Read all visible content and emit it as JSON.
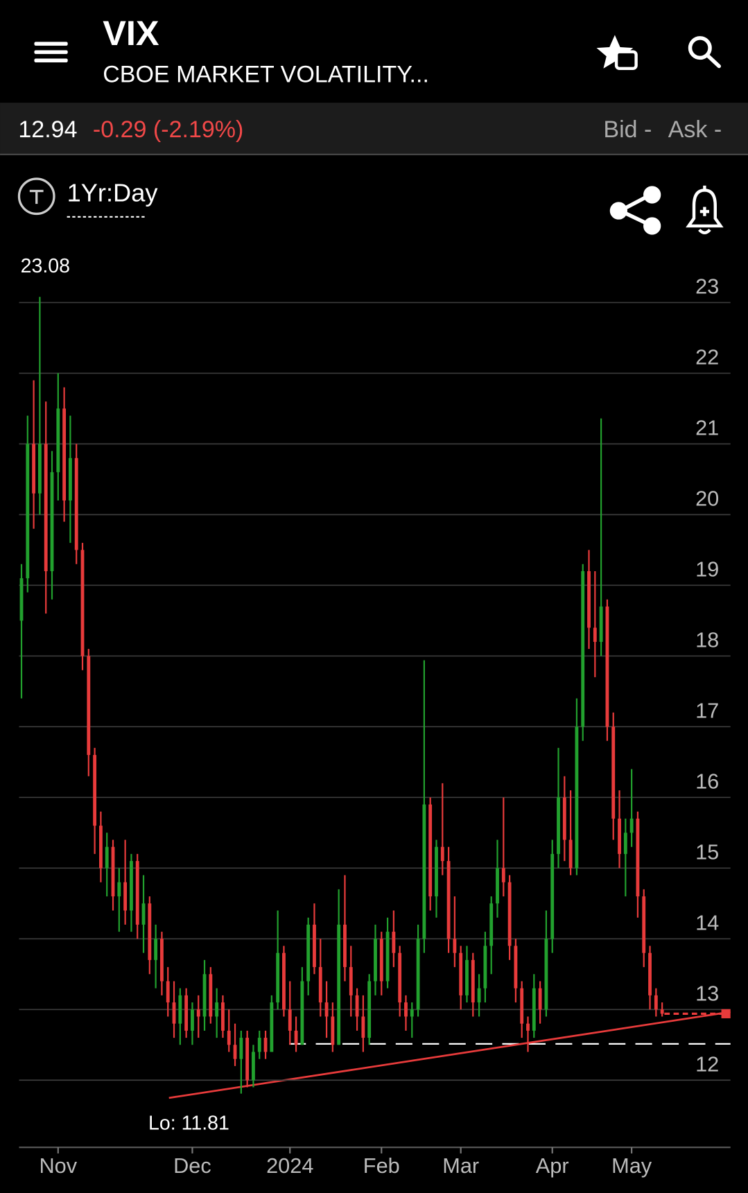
{
  "header": {
    "title": "VIX",
    "subtitle": "CBOE MARKET VOLATILITY..."
  },
  "quote": {
    "last": "12.94",
    "change": "-0.29 (-2.19%)",
    "bid": "Bid -",
    "ask": "Ask -"
  },
  "toolbar": {
    "period": "1Yr:Day"
  },
  "chart_data": {
    "type": "candlestick",
    "up_color": "#22a12e",
    "down_color": "#e83b3b",
    "grid": true,
    "annotations": [
      "23.08",
      "Lo: 11.81"
    ],
    "ylim": [
      11.05,
      23.62
    ],
    "yticks": [
      12,
      13,
      14,
      15,
      16,
      17,
      18,
      19,
      20,
      21,
      22,
      23
    ],
    "xlim": [
      -0.4,
      116.2
    ],
    "xticks": [
      {
        "value": 6,
        "label": "Nov"
      },
      {
        "value": 28,
        "label": "Dec"
      },
      {
        "value": 44,
        "label": "2024"
      },
      {
        "value": 59,
        "label": "Feb"
      },
      {
        "value": 72,
        "label": "Mar"
      },
      {
        "value": 87,
        "label": "Apr"
      },
      {
        "value": 100,
        "label": "May"
      }
    ],
    "ohlc": [
      [
        18.5,
        19.3,
        17.4,
        19.1
      ],
      [
        19.1,
        21.4,
        18.9,
        21.0
      ],
      [
        21.0,
        21.9,
        19.8,
        20.3
      ],
      [
        20.3,
        23.08,
        20.0,
        21.0
      ],
      [
        21.0,
        21.6,
        18.6,
        19.2
      ],
      [
        19.2,
        20.9,
        18.8,
        20.6
      ],
      [
        20.6,
        22.0,
        20.2,
        21.5
      ],
      [
        21.5,
        21.8,
        19.9,
        20.2
      ],
      [
        20.2,
        21.4,
        19.6,
        20.8
      ],
      [
        20.8,
        21.0,
        19.3,
        19.5
      ],
      [
        19.5,
        19.6,
        17.8,
        18.0
      ],
      [
        18.0,
        18.1,
        16.3,
        16.6
      ],
      [
        16.6,
        16.7,
        15.2,
        15.6
      ],
      [
        15.6,
        15.8,
        14.8,
        15.0
      ],
      [
        15.0,
        15.5,
        14.6,
        15.3
      ],
      [
        15.3,
        15.4,
        14.4,
        14.6
      ],
      [
        14.6,
        15.0,
        14.1,
        14.8
      ],
      [
        14.8,
        15.4,
        14.2,
        14.4
      ],
      [
        14.4,
        15.2,
        14.1,
        15.1
      ],
      [
        15.1,
        15.2,
        14.0,
        14.2
      ],
      [
        14.2,
        14.9,
        13.8,
        14.5
      ],
      [
        14.5,
        14.6,
        13.5,
        13.7
      ],
      [
        13.7,
        14.2,
        13.3,
        14.0
      ],
      [
        14.0,
        14.1,
        13.2,
        13.4
      ],
      [
        13.4,
        13.6,
        12.9,
        13.1
      ],
      [
        13.1,
        13.4,
        12.6,
        12.8
      ],
      [
        12.8,
        13.3,
        12.5,
        13.2
      ],
      [
        13.2,
        13.3,
        12.6,
        12.7
      ],
      [
        12.7,
        13.1,
        12.5,
        13.0
      ],
      [
        13.0,
        13.2,
        12.6,
        12.9
      ],
      [
        12.9,
        13.7,
        12.7,
        13.5
      ],
      [
        13.5,
        13.6,
        12.8,
        12.9
      ],
      [
        12.9,
        13.3,
        12.6,
        13.1
      ],
      [
        13.1,
        13.2,
        12.6,
        12.7
      ],
      [
        12.7,
        13.0,
        12.4,
        12.5
      ],
      [
        12.5,
        12.8,
        12.2,
        12.3
      ],
      [
        12.3,
        12.7,
        11.81,
        12.6
      ],
      [
        12.6,
        12.7,
        11.9,
        12.0
      ],
      [
        12.0,
        12.5,
        11.9,
        12.4
      ],
      [
        12.4,
        12.7,
        12.3,
        12.6
      ],
      [
        12.6,
        12.7,
        12.3,
        12.4
      ],
      [
        12.4,
        13.2,
        12.4,
        13.1
      ],
      [
        13.1,
        14.4,
        13.0,
        13.8
      ],
      [
        13.8,
        13.9,
        12.9,
        13.0
      ],
      [
        13.0,
        13.4,
        12.5,
        12.7
      ],
      [
        12.7,
        12.9,
        12.4,
        12.5
      ],
      [
        12.5,
        13.6,
        12.5,
        13.4
      ],
      [
        13.4,
        14.3,
        13.2,
        14.2
      ],
      [
        14.2,
        14.5,
        13.5,
        13.6
      ],
      [
        13.6,
        14.0,
        12.9,
        13.1
      ],
      [
        13.1,
        13.4,
        12.6,
        12.9
      ],
      [
        12.9,
        13.1,
        12.4,
        12.5
      ],
      [
        12.5,
        14.7,
        12.5,
        14.2
      ],
      [
        14.2,
        14.9,
        13.4,
        13.6
      ],
      [
        13.6,
        13.9,
        12.9,
        13.2
      ],
      [
        13.2,
        13.3,
        12.7,
        12.9
      ],
      [
        12.9,
        13.2,
        12.4,
        12.6
      ],
      [
        12.6,
        13.5,
        12.5,
        13.4
      ],
      [
        13.4,
        14.2,
        13.2,
        14.0
      ],
      [
        14.0,
        14.1,
        13.2,
        13.4
      ],
      [
        13.4,
        14.3,
        13.3,
        14.1
      ],
      [
        14.1,
        14.4,
        13.6,
        13.8
      ],
      [
        13.8,
        13.9,
        12.9,
        13.1
      ],
      [
        13.1,
        13.2,
        12.7,
        12.9
      ],
      [
        12.9,
        13.1,
        12.6,
        13.0
      ],
      [
        13.0,
        14.2,
        12.9,
        14.0
      ],
      [
        14.0,
        17.94,
        13.8,
        15.9
      ],
      [
        15.9,
        16.0,
        14.4,
        14.6
      ],
      [
        14.6,
        15.4,
        14.3,
        15.3
      ],
      [
        15.3,
        16.2,
        14.9,
        15.1
      ],
      [
        15.1,
        15.3,
        13.8,
        14.0
      ],
      [
        14.0,
        14.6,
        13.6,
        13.8
      ],
      [
        13.8,
        13.9,
        13.0,
        13.2
      ],
      [
        13.2,
        13.9,
        13.1,
        13.7
      ],
      [
        13.7,
        13.8,
        12.9,
        13.1
      ],
      [
        13.1,
        13.5,
        12.9,
        13.3
      ],
      [
        13.3,
        14.1,
        13.1,
        13.9
      ],
      [
        13.9,
        14.6,
        13.5,
        14.5
      ],
      [
        14.5,
        15.4,
        14.3,
        15.0
      ],
      [
        15.0,
        16.0,
        14.6,
        14.8
      ],
      [
        14.8,
        14.9,
        13.7,
        13.9
      ],
      [
        13.9,
        14.0,
        13.1,
        13.3
      ],
      [
        13.3,
        13.4,
        12.6,
        12.8
      ],
      [
        12.8,
        12.9,
        12.4,
        12.7
      ],
      [
        12.7,
        13.5,
        12.6,
        13.3
      ],
      [
        13.3,
        13.4,
        12.8,
        13.0
      ],
      [
        13.0,
        14.4,
        12.9,
        14.0
      ],
      [
        14.0,
        15.4,
        13.8,
        15.2
      ],
      [
        15.2,
        16.7,
        15.0,
        16.0
      ],
      [
        16.0,
        16.3,
        15.1,
        15.4
      ],
      [
        15.4,
        16.1,
        14.9,
        15.0
      ],
      [
        15.0,
        17.4,
        14.9,
        17.0
      ],
      [
        17.0,
        19.3,
        16.8,
        19.2
      ],
      [
        19.2,
        19.5,
        18.1,
        18.4
      ],
      [
        18.4,
        19.2,
        17.7,
        18.2
      ],
      [
        18.2,
        21.36,
        18.0,
        18.7
      ],
      [
        18.7,
        18.8,
        16.8,
        17.0
      ],
      [
        17.0,
        17.2,
        15.4,
        15.7
      ],
      [
        15.7,
        16.1,
        15.0,
        15.2
      ],
      [
        15.2,
        15.7,
        14.6,
        15.5
      ],
      [
        15.5,
        16.4,
        15.3,
        15.7
      ],
      [
        15.7,
        15.8,
        14.3,
        14.6
      ],
      [
        14.6,
        14.7,
        13.6,
        13.8
      ],
      [
        13.8,
        13.9,
        13.0,
        13.2
      ],
      [
        13.2,
        13.3,
        12.9,
        13.0
      ],
      [
        13.0,
        13.1,
        12.9,
        12.94
      ]
    ]
  }
}
